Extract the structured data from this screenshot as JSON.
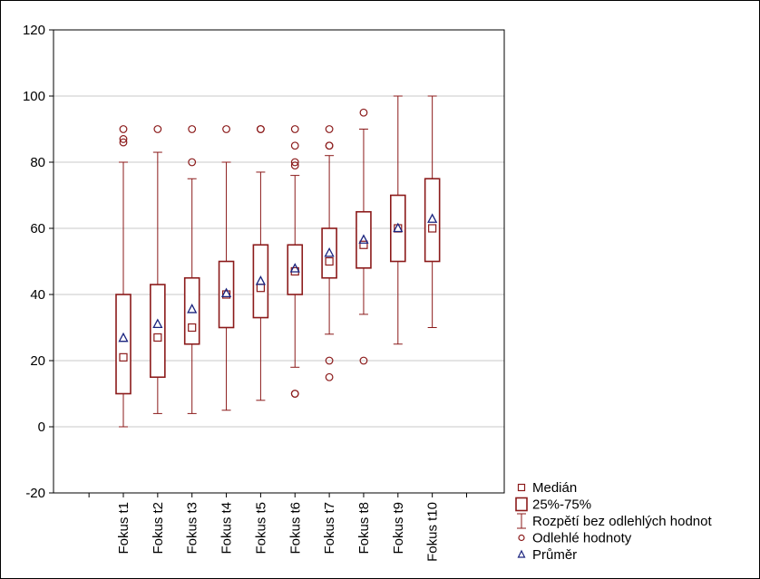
{
  "chart_data": {
    "type": "box",
    "categories": [
      "Fokus t1",
      "Fokus t2",
      "Fokus t3",
      "Fokus t4",
      "Fokus t5",
      "Fokus t6",
      "Fokus t7",
      "Fokus t8",
      "Fokus t9",
      "Fokus t10"
    ],
    "ylim": [
      -20,
      120
    ],
    "yticks": [
      -20,
      0,
      20,
      40,
      60,
      80,
      100,
      120
    ],
    "grid": true,
    "legend_position": "bottom-right",
    "colors": {
      "box": "#8b1a1a",
      "mean": "#1a237e",
      "grid": "#c8c8c8"
    },
    "boxes": [
      {
        "min": 0,
        "q1": 10,
        "median": 21,
        "q3": 40,
        "max": 80,
        "mean": 26.8,
        "outliers": [
          86,
          87,
          90
        ]
      },
      {
        "min": 4,
        "q1": 15,
        "median": 27,
        "q3": 43,
        "max": 83,
        "mean": 31,
        "outliers": [
          90
        ]
      },
      {
        "min": 4,
        "q1": 25,
        "median": 30,
        "q3": 45,
        "max": 75,
        "mean": 35.5,
        "outliers": [
          80,
          90
        ]
      },
      {
        "min": 5,
        "q1": 30,
        "median": 40,
        "q3": 50,
        "max": 80,
        "mean": 40.3,
        "outliers": [
          90
        ]
      },
      {
        "min": 8,
        "q1": 33,
        "median": 42,
        "q3": 55,
        "max": 77,
        "mean": 44,
        "outliers": [
          90,
          90
        ]
      },
      {
        "min": 18,
        "q1": 40,
        "median": 47,
        "q3": 55,
        "max": 76,
        "mean": 47.8,
        "outliers": [
          10,
          10,
          79,
          80,
          85,
          90
        ]
      },
      {
        "min": 28,
        "q1": 45,
        "median": 50,
        "q3": 60,
        "max": 82,
        "mean": 52.5,
        "outliers": [
          15,
          20,
          85,
          85,
          90
        ]
      },
      {
        "min": 34,
        "q1": 48,
        "median": 55,
        "q3": 65,
        "max": 90,
        "mean": 56.5,
        "outliers": [
          20,
          95
        ]
      },
      {
        "min": 25,
        "q1": 50,
        "median": 60,
        "q3": 70,
        "max": 100,
        "mean": 60,
        "outliers": []
      },
      {
        "min": 30,
        "q1": 50,
        "median": 60,
        "q3": 75,
        "max": 100,
        "mean": 62.8,
        "outliers": []
      }
    ],
    "legend": [
      {
        "key": "median",
        "label": "Medián"
      },
      {
        "key": "box",
        "label": "25%-75%"
      },
      {
        "key": "whisker",
        "label": "Rozpětí bez odlehlých hodnot"
      },
      {
        "key": "outlier",
        "label": "Odlehlé hodnoty"
      },
      {
        "key": "mean",
        "label": "Průměr"
      }
    ]
  }
}
